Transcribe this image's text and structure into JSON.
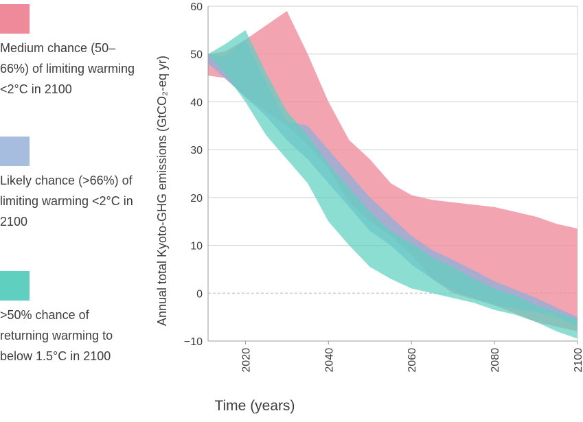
{
  "chart_data": {
    "type": "area",
    "xlabel": "Time (years)",
    "ylabel": "Annual total Kyoto-GHG emissions (GtCO₂-eq yr)",
    "xlim": [
      2011,
      2100
    ],
    "ylim": [
      -10,
      60
    ],
    "xticks": [
      2020,
      2040,
      2060,
      2080,
      2100
    ],
    "yticks": [
      -10,
      0,
      10,
      20,
      30,
      40,
      50,
      60
    ],
    "grid": "horizontal",
    "zero_line": "dashed",
    "legend_position": "left",
    "series": [
      {
        "name": "Medium chance (50–66%) of limiting warming <2°C in 2100",
        "color": "#ee8a9a",
        "x": [
          2011,
          2015,
          2020,
          2030,
          2035,
          2040,
          2045,
          2050,
          2055,
          2060,
          2065,
          2070,
          2080,
          2090,
          2095,
          2100
        ],
        "upper": [
          50,
          50.5,
          53,
          59,
          50,
          40,
          32,
          28,
          23,
          20.5,
          19.5,
          19,
          18,
          16,
          14.5,
          13.5
        ],
        "lower": [
          45.5,
          45,
          41,
          35,
          31,
          26,
          19,
          15,
          12,
          8,
          3,
          0,
          -2.5,
          -6,
          -7,
          -8
        ]
      },
      {
        "name": "Likely chance (>66%) of limiting warming <2°C in 2100",
        "color": "#8ab0dd",
        "x": [
          2011,
          2015,
          2020,
          2025,
          2030,
          2035,
          2040,
          2045,
          2050,
          2055,
          2060,
          2065,
          2070,
          2080,
          2090,
          2095,
          2100
        ],
        "upper": [
          50,
          49.5,
          53,
          44,
          36,
          35,
          30,
          25,
          20,
          16,
          12,
          9,
          7,
          2.5,
          -1,
          -3,
          -5
        ],
        "lower": [
          48,
          45,
          41,
          37,
          32,
          28,
          23,
          18,
          13,
          10,
          6,
          3,
          0.5,
          -2.5,
          -4,
          -5,
          -7
        ]
      },
      {
        "name": ">50% chance of returning warming to below 1.5°C in 2100",
        "color": "#5fd0c0",
        "x": [
          2011,
          2015,
          2020,
          2025,
          2030,
          2035,
          2040,
          2045,
          2050,
          2055,
          2060,
          2065,
          2070,
          2075,
          2080,
          2085,
          2090,
          2095,
          2100
        ],
        "upper": [
          50,
          52,
          55,
          46,
          38,
          33,
          27,
          22,
          17,
          13,
          10.5,
          7.5,
          5.5,
          3,
          1,
          -0.5,
          -2.5,
          -4,
          -5.5
        ],
        "lower": [
          50,
          46,
          40,
          33,
          28,
          23,
          15,
          10,
          5.5,
          3,
          1,
          0,
          -1,
          -2,
          -3.5,
          -4.5,
          -6,
          -8,
          -9.5
        ]
      }
    ]
  }
}
